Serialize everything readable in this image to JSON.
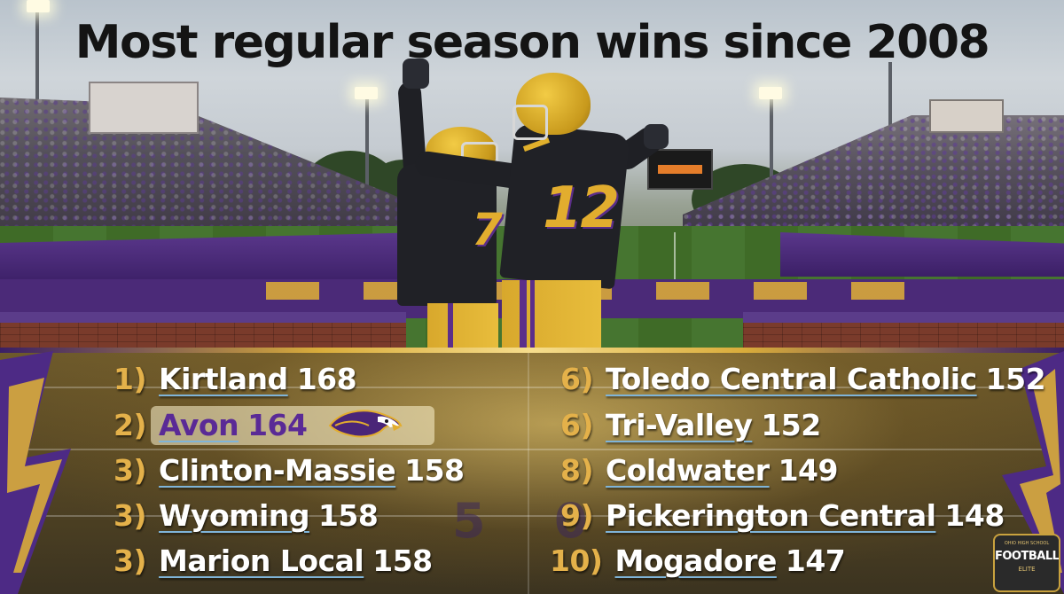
{
  "title": "Most regular season wins since 2008",
  "rankings": [
    {
      "rank": "1)",
      "school": "Kirtland",
      "wins": "168"
    },
    {
      "rank": "2)",
      "school": "Avon",
      "wins": "164",
      "highlighted": true
    },
    {
      "rank": "3)",
      "school": "Clinton-Massie",
      "wins": "158"
    },
    {
      "rank": "3)",
      "school": "Wyoming",
      "wins": "158"
    },
    {
      "rank": "3)",
      "school": "Marion Local",
      "wins": "158"
    },
    {
      "rank": "6)",
      "school": "Toledo Central Catholic",
      "wins": "152"
    },
    {
      "rank": "6)",
      "school": "Tri-Valley",
      "wins": "152"
    },
    {
      "rank": "8)",
      "school": "Coldwater",
      "wins": "149"
    },
    {
      "rank": "9)",
      "school": "Pickerington Central",
      "wins": "148"
    },
    {
      "rank": "10)",
      "school": "Mogadore",
      "wins": "147"
    }
  ],
  "photo": {
    "jersey_number": "12",
    "jersey_number_2": "7"
  },
  "logo": {
    "line1": "OHIO HIGH SCHOOL",
    "line2": "FOOTBALL",
    "line3": "ELITE"
  },
  "colors": {
    "rank": "#e4b14a",
    "text": "#ffffff",
    "highlight_text": "#5a2a96",
    "underline": "#7fb4d8",
    "purple": "#4b2a78",
    "gold": "#d9ac3a"
  },
  "icons": [
    "eagle-mascot-icon",
    "lightning-bolt-icon",
    "league-logo-icon"
  ]
}
